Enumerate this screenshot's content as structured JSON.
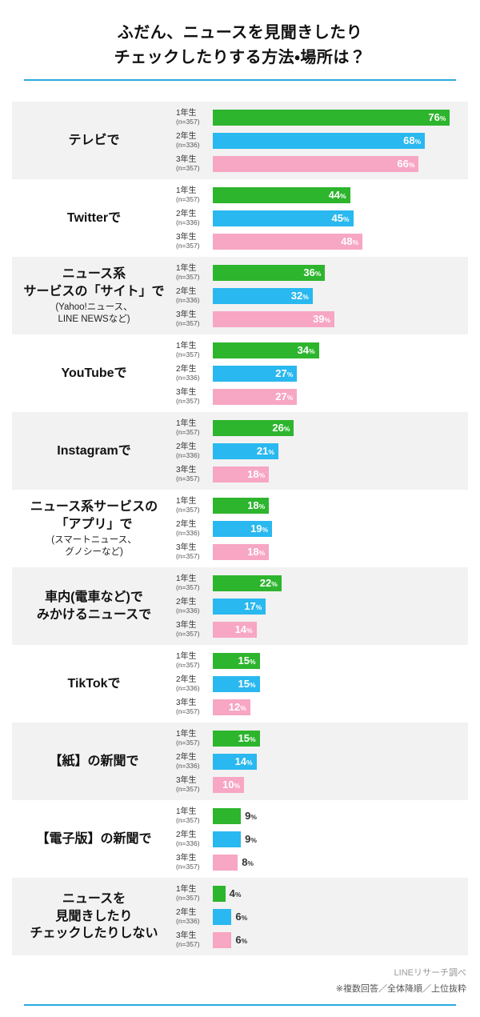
{
  "header": {
    "title_lines": [
      "ふだん、ニュースを見聞きしたり",
      "チェックしたりする方法・場所は？"
    ]
  },
  "footer": {
    "source": "LINEリサーチ調べ",
    "note": "※複数回答／全体降順／上位抜粋"
  },
  "colors": {
    "accent_line": "#29abe2",
    "band": "#f2f2f2",
    "value_inside": "#ffffff",
    "value_outside": "#333333"
  },
  "chart_data": {
    "type": "bar",
    "orientation": "horizontal",
    "title": "ふだん、ニュースを見聞きしたりチェックしたりする方法・場所は？",
    "value_unit": "%",
    "xlim": [
      0,
      80
    ],
    "grid": false,
    "legend_position": "per-bar-labels",
    "series": [
      {
        "name": "1年生",
        "n_label": "(n=357)",
        "color": "#2db52d"
      },
      {
        "name": "2年生",
        "n_label": "(n=336)",
        "color": "#29b8ef"
      },
      {
        "name": "3年生",
        "n_label": "(n=357)",
        "color": "#f7a6c4"
      }
    ],
    "categories": [
      {
        "label_lines": [
          "テレビで"
        ],
        "sub_lines": [],
        "values": [
          76,
          68,
          66
        ]
      },
      {
        "label_lines": [
          "Twitterで"
        ],
        "sub_lines": [],
        "values": [
          44,
          45,
          48
        ]
      },
      {
        "label_lines": [
          "ニュース系",
          "サービスの「サイト」で"
        ],
        "sub_lines": [
          "(Yahoo!ニュース、",
          "LINE NEWSなど)"
        ],
        "values": [
          36,
          32,
          39
        ]
      },
      {
        "label_lines": [
          "YouTubeで"
        ],
        "sub_lines": [],
        "values": [
          34,
          27,
          27
        ]
      },
      {
        "label_lines": [
          "Instagramで"
        ],
        "sub_lines": [],
        "values": [
          26,
          21,
          18
        ]
      },
      {
        "label_lines": [
          "ニュース系サービスの",
          "「アプリ」で"
        ],
        "sub_lines": [
          "(スマートニュース、",
          "グノシーなど)"
        ],
        "values": [
          18,
          19,
          18
        ]
      },
      {
        "label_lines": [
          "車内(電車など)で",
          "みかけるニュースで"
        ],
        "sub_lines": [],
        "values": [
          22,
          17,
          14
        ]
      },
      {
        "label_lines": [
          "TikTokで"
        ],
        "sub_lines": [],
        "values": [
          15,
          15,
          12
        ]
      },
      {
        "label_lines": [
          "【紙】の新聞で"
        ],
        "sub_lines": [],
        "values": [
          15,
          14,
          10
        ]
      },
      {
        "label_lines": [
          "【電子版】の新聞で"
        ],
        "sub_lines": [],
        "values": [
          9,
          9,
          8
        ]
      },
      {
        "label_lines": [
          "ニュースを",
          "見聞きしたり",
          "チェックしたりしない"
        ],
        "sub_lines": [],
        "values": [
          4,
          6,
          6
        ]
      }
    ]
  }
}
